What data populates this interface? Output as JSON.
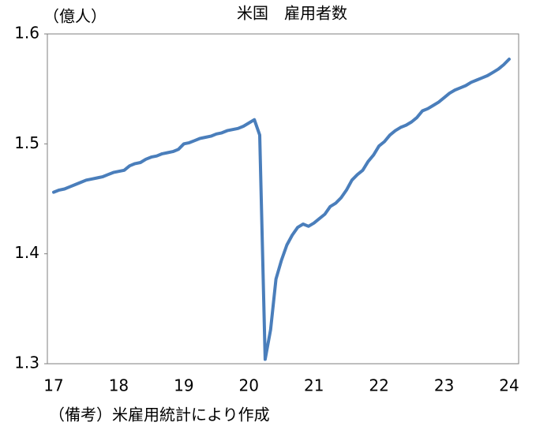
{
  "chart_data": {
    "type": "line",
    "title": "米国　雇用者数",
    "y_label": "（億人）",
    "note": "（備考）米雇用統計により作成",
    "categories": [
      "17",
      null,
      null,
      null,
      null,
      null,
      null,
      null,
      null,
      null,
      null,
      null,
      "18",
      null,
      null,
      null,
      null,
      null,
      null,
      null,
      null,
      null,
      null,
      null,
      "19",
      null,
      null,
      null,
      null,
      null,
      null,
      null,
      null,
      null,
      null,
      null,
      "20",
      null,
      null,
      null,
      null,
      null,
      null,
      null,
      null,
      null,
      null,
      null,
      "21",
      null,
      null,
      null,
      null,
      null,
      null,
      null,
      null,
      null,
      null,
      null,
      "22",
      null,
      null,
      null,
      null,
      null,
      null,
      null,
      null,
      null,
      null,
      null,
      "23",
      null,
      null,
      null,
      null,
      null,
      null,
      null,
      null,
      null,
      null,
      null,
      "24"
    ],
    "values": [
      1.456,
      1.458,
      1.459,
      1.461,
      1.463,
      1.465,
      1.467,
      1.468,
      1.469,
      1.47,
      1.472,
      1.474,
      1.475,
      1.476,
      1.48,
      1.482,
      1.483,
      1.486,
      1.488,
      1.489,
      1.491,
      1.492,
      1.493,
      1.495,
      1.5,
      1.501,
      1.503,
      1.505,
      1.506,
      1.507,
      1.509,
      1.51,
      1.512,
      1.513,
      1.514,
      1.516,
      1.519,
      1.522,
      1.508,
      1.304,
      1.331,
      1.377,
      1.394,
      1.408,
      1.417,
      1.424,
      1.427,
      1.425,
      1.428,
      1.432,
      1.436,
      1.443,
      1.446,
      1.451,
      1.458,
      1.467,
      1.472,
      1.476,
      1.484,
      1.49,
      1.498,
      1.502,
      1.508,
      1.512,
      1.515,
      1.517,
      1.52,
      1.524,
      1.53,
      1.532,
      1.535,
      1.538,
      1.542,
      1.546,
      1.549,
      1.551,
      1.553,
      1.556,
      1.558,
      1.56,
      1.562,
      1.565,
      1.568,
      1.572,
      1.577
    ],
    "color": "#4a7ebb",
    "ylim": [
      1.3,
      1.6
    ],
    "yticks": [
      1.3,
      1.4,
      1.5,
      1.6
    ],
    "grid": false
  }
}
